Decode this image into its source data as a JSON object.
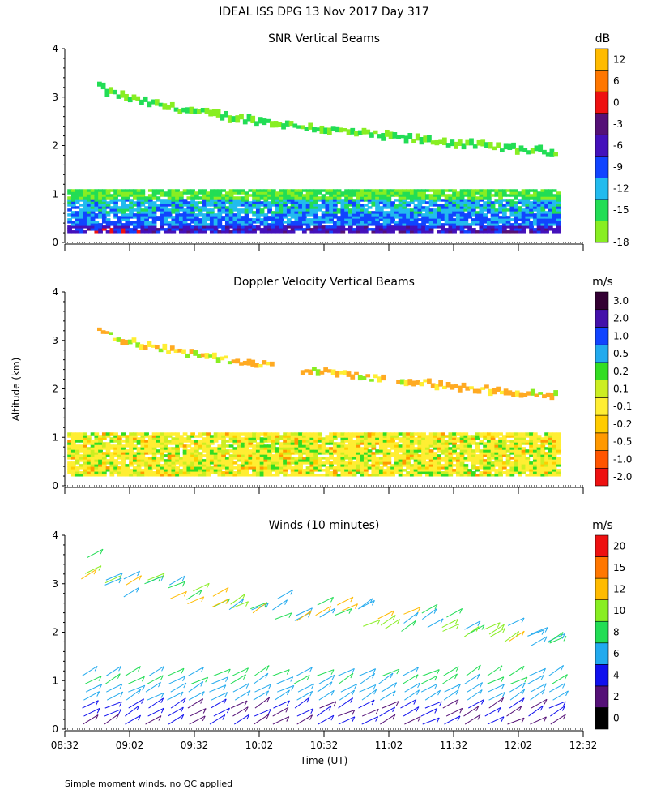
{
  "header": {
    "title": "IDEAL ISS DPG  13 Nov 2017 Day 317"
  },
  "footer": {
    "note": "Simple moment winds, no QC applied"
  },
  "chart_data": [
    {
      "id": "snr",
      "type": "heatmap",
      "title": "SNR Vertical Beams",
      "ylabel": "",
      "xlabel": "",
      "ylim": [
        0,
        4
      ],
      "yticks": [
        "0",
        "1",
        "2",
        "3",
        "4"
      ],
      "show_x_tick_labels": false,
      "colorbar": {
        "unit": "dB",
        "labels": [
          "-18",
          "-15",
          "-12",
          "-9",
          "-6",
          "-3",
          "0",
          "6",
          "12"
        ],
        "colors": [
          "#88ee22",
          "#22dd55",
          "#22bbee",
          "#1144ff",
          "#4411bb",
          "#551177",
          "#ee1111",
          "#ff7700",
          "#ffbb00"
        ]
      },
      "layers": [
        {
          "name": "upper-layer",
          "alt_start": 3.25,
          "alt_end": 1.85,
          "thickness": 0.12,
          "x_start": 0.25,
          "x_end": 3.8,
          "color": "#88ee22"
        },
        {
          "name": "boundary-layer-weak",
          "alt_low": 0.2,
          "alt_high": 1.1,
          "color": "#22bbee"
        },
        {
          "name": "boundary-layer-strong",
          "alt_low": 0.2,
          "alt_high": 0.6,
          "color": "#1144ff"
        }
      ]
    },
    {
      "id": "doppler",
      "type": "heatmap",
      "title": "Doppler Velocity Vertical Beams",
      "ylabel": "Altitude (km)",
      "xlabel": "",
      "ylim": [
        0,
        4
      ],
      "yticks": [
        "0",
        "1",
        "2",
        "3",
        "4"
      ],
      "show_x_tick_labels": false,
      "colorbar": {
        "unit": "m/s",
        "labels": [
          "-2.0",
          "-1.0",
          "-0.5",
          "-0.2",
          "-0.1",
          "0.1",
          "0.2",
          "0.5",
          "1.0",
          "2.0",
          "3.0"
        ],
        "colors": [
          "#ee1111",
          "#ff5500",
          "#ff9900",
          "#ffcc00",
          "#ffee33",
          "#ccee22",
          "#33dd22",
          "#22aaee",
          "#1144ff",
          "#4411aa",
          "#330033"
        ]
      },
      "layers": [
        {
          "name": "upper-layer",
          "alt_start": 3.25,
          "alt_end": 1.85,
          "thickness": 0.1,
          "x_start": 0.25,
          "x_end": 3.8,
          "color": "#ffaa22"
        },
        {
          "name": "boundary-layer",
          "alt_low": 0.2,
          "alt_high": 1.1,
          "color": "#eeee44"
        }
      ]
    },
    {
      "id": "winds",
      "type": "scatter",
      "title": "Winds (10 minutes)",
      "ylabel": "",
      "xlabel": "Time (UT)",
      "ylim": [
        0,
        4
      ],
      "yticks": [
        "0",
        "1",
        "2",
        "3",
        "4"
      ],
      "show_x_tick_labels": true,
      "x_ticks": [
        "08:32",
        "09:02",
        "09:32",
        "10:02",
        "10:32",
        "11:02",
        "11:32",
        "12:02",
        "12:32"
      ],
      "colorbar": {
        "unit": "m/s",
        "labels": [
          "0",
          "2",
          "4",
          "6",
          "8",
          "10",
          "12",
          "15",
          "20"
        ],
        "colors": [
          "#000000",
          "#551177",
          "#1111ee",
          "#22aaee",
          "#22dd55",
          "#88ee22",
          "#ffbb00",
          "#ff7700",
          "#ee1111"
        ]
      },
      "barb_columns": 23,
      "barb_column_start_hours": 0.2,
      "barb_column_end_hours": 3.8,
      "barb_alt_low": 0.1,
      "barb_alt_high": 1.1,
      "upper_barb_alt_start": 3.3,
      "upper_barb_alt_end": 1.9
    }
  ],
  "colors": {
    "background": "#ffffff",
    "axis": "#000000"
  }
}
